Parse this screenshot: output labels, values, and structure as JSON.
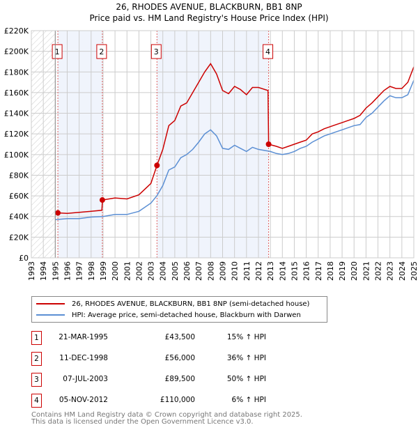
{
  "chart_data": {
    "type": "line",
    "title": "26, RHODES AVENUE, BLACKBURN, BB1 8NP",
    "subtitle": "Price paid vs. HM Land Registry's House Price Index (HPI)",
    "xlim": [
      1993,
      2025
    ],
    "ylim": [
      0,
      220000
    ],
    "yticks": [
      "£0",
      "£20K",
      "£40K",
      "£60K",
      "£80K",
      "£100K",
      "£120K",
      "£140K",
      "£160K",
      "£180K",
      "£200K",
      "£220K"
    ],
    "xticks": [
      "1993",
      "1994",
      "1995",
      "1996",
      "1997",
      "1998",
      "1999",
      "2000",
      "2001",
      "2002",
      "2003",
      "2004",
      "2005",
      "2006",
      "2007",
      "2008",
      "2009",
      "2010",
      "2011",
      "2012",
      "2013",
      "2014",
      "2015",
      "2016",
      "2017",
      "2018",
      "2019",
      "2020",
      "2021",
      "2022",
      "2023",
      "2024",
      "2025"
    ],
    "grid": true,
    "series": [
      {
        "name": "26, RHODES AVENUE, BLACKBURN, BB1 8NP (semi-detached house)",
        "color": "#cc0000",
        "x": [
          1995.22,
          1996,
          1997,
          1998,
          1998.9,
          1998.95,
          1999.5,
          2000,
          2001,
          2002,
          2003,
          2003.51,
          2004,
          2004.5,
          2005,
          2005.5,
          2006,
          2006.5,
          2007,
          2007.5,
          2008,
          2008.5,
          2009,
          2009.5,
          2010,
          2010.5,
          2011,
          2011.5,
          2012,
          2012.8,
          2012.85,
          2013.5,
          2014,
          2014.5,
          2015,
          2015.5,
          2016,
          2016.5,
          2017,
          2017.5,
          2018,
          2018.5,
          2019,
          2019.5,
          2020,
          2020.5,
          2021,
          2021.5,
          2022,
          2022.5,
          2023,
          2023.5,
          2024,
          2024.5,
          2025
        ],
        "y": [
          43500,
          43000,
          44000,
          45000,
          46000,
          56000,
          57000,
          58000,
          57000,
          61000,
          72000,
          89500,
          105000,
          128000,
          133000,
          147000,
          150000,
          160000,
          170000,
          180000,
          188000,
          178000,
          162000,
          159000,
          166000,
          163000,
          158000,
          165000,
          165000,
          162000,
          110000,
          108000,
          106000,
          108000,
          110000,
          112000,
          114000,
          120000,
          122000,
          125000,
          127000,
          129000,
          131000,
          133000,
          135000,
          138000,
          145000,
          150000,
          156000,
          162000,
          166000,
          164000,
          164000,
          170000,
          185000
        ]
      },
      {
        "name": "HPI: Average price, semi-detached house, Blackburn with Darwen",
        "color": "#5b8fd4",
        "x": [
          1995,
          1996,
          1997,
          1998,
          1999,
          2000,
          2001,
          2002,
          2003,
          2003.5,
          2004,
          2004.5,
          2005,
          2005.5,
          2006,
          2006.5,
          2007,
          2007.5,
          2008,
          2008.5,
          2009,
          2009.5,
          2010,
          2010.5,
          2011,
          2011.5,
          2012,
          2012.5,
          2013,
          2013.5,
          2014,
          2014.5,
          2015,
          2015.5,
          2016,
          2016.5,
          2017,
          2017.5,
          2018,
          2018.5,
          2019,
          2019.5,
          2020,
          2020.5,
          2021,
          2021.5,
          2022,
          2022.5,
          2023,
          2023.5,
          2024,
          2024.5,
          2025
        ],
        "y": [
          37000,
          38000,
          38000,
          39500,
          40000,
          42000,
          42000,
          45000,
          53000,
          60000,
          70000,
          85000,
          88000,
          97000,
          100000,
          105000,
          112000,
          120000,
          124000,
          118000,
          106000,
          105000,
          109000,
          106000,
          103000,
          107000,
          105000,
          104000,
          103000,
          101000,
          100000,
          101000,
          103000,
          106000,
          108000,
          112000,
          115000,
          118000,
          120000,
          122000,
          124000,
          126000,
          128000,
          129000,
          136000,
          140000,
          146000,
          152000,
          157000,
          155000,
          155000,
          158000,
          172000
        ]
      }
    ],
    "sales": [
      {
        "label": "1",
        "x": 1995.22,
        "y": 43500
      },
      {
        "label": "2",
        "x": 1998.94,
        "y": 56000
      },
      {
        "label": "3",
        "x": 2003.51,
        "y": 89500
      },
      {
        "label": "4",
        "x": 2012.85,
        "y": 110000
      }
    ],
    "legend_position": "below"
  },
  "legend": {
    "property": "26, RHODES AVENUE, BLACKBURN, BB1 8NP (semi-detached house)",
    "hpi": "HPI: Average price, semi-detached house, Blackburn with Darwen"
  },
  "transactions": [
    {
      "num": "1",
      "date": "21-MAR-1995",
      "price": "£43,500",
      "hpi": "15% ↑ HPI"
    },
    {
      "num": "2",
      "date": "11-DEC-1998",
      "price": "£56,000",
      "hpi": "36% ↑ HPI"
    },
    {
      "num": "3",
      "date": "07-JUL-2003",
      "price": "£89,500",
      "hpi": "50% ↑ HPI"
    },
    {
      "num": "4",
      "date": "05-NOV-2012",
      "price": "£110,000",
      "hpi": "6% ↑ HPI"
    }
  ],
  "footer": {
    "line1": "Contains HM Land Registry data © Crown copyright and database right 2025.",
    "line2": "This data is licensed under the Open Government Licence v3.0."
  }
}
